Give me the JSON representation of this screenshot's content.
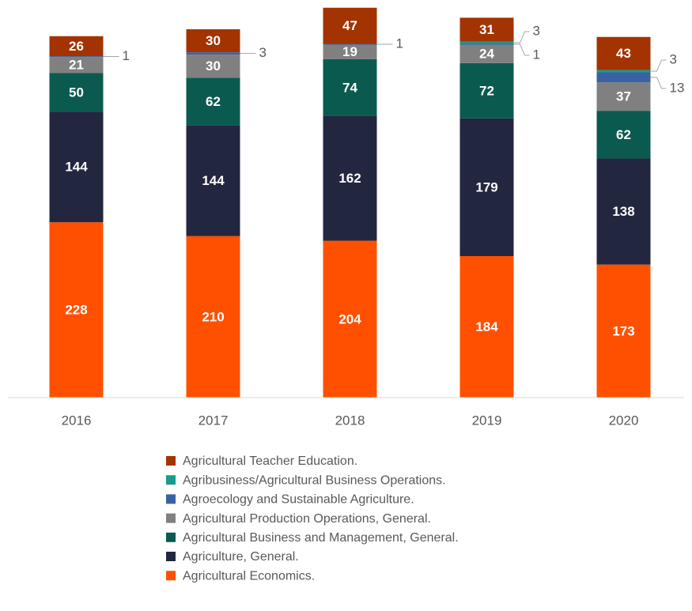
{
  "chart_data": {
    "type": "stacked_bar",
    "categories": [
      "2016",
      "2017",
      "2018",
      "2019",
      "2020"
    ],
    "series": [
      {
        "name": "Agricultural Economics.",
        "color": "#ff5000",
        "values": [
          228,
          210,
          204,
          184,
          173
        ]
      },
      {
        "name": "Agriculture, General.",
        "color": "#23263f",
        "values": [
          144,
          144,
          162,
          179,
          138
        ]
      },
      {
        "name": "Agricultural Business and Management, General.",
        "color": "#0b5a4f",
        "values": [
          50,
          62,
          74,
          72,
          62
        ]
      },
      {
        "name": "Agricultural Production Operations, General.",
        "color": "#808080",
        "values": [
          21,
          30,
          19,
          24,
          37
        ]
      },
      {
        "name": "Agroecology and Sustainable Agriculture.",
        "color": "#3a62a3",
        "values": [
          1,
          3,
          1,
          1,
          13
        ]
      },
      {
        "name": "Agribusiness/Agricultural Business Operations.",
        "color": "#179c8c",
        "values": [
          null,
          null,
          null,
          3,
          3
        ]
      },
      {
        "name": "Agricultural Teacher Education.",
        "color": "#a33300",
        "values": [
          26,
          30,
          47,
          31,
          43
        ]
      }
    ],
    "ylim": [
      0,
      515
    ]
  }
}
